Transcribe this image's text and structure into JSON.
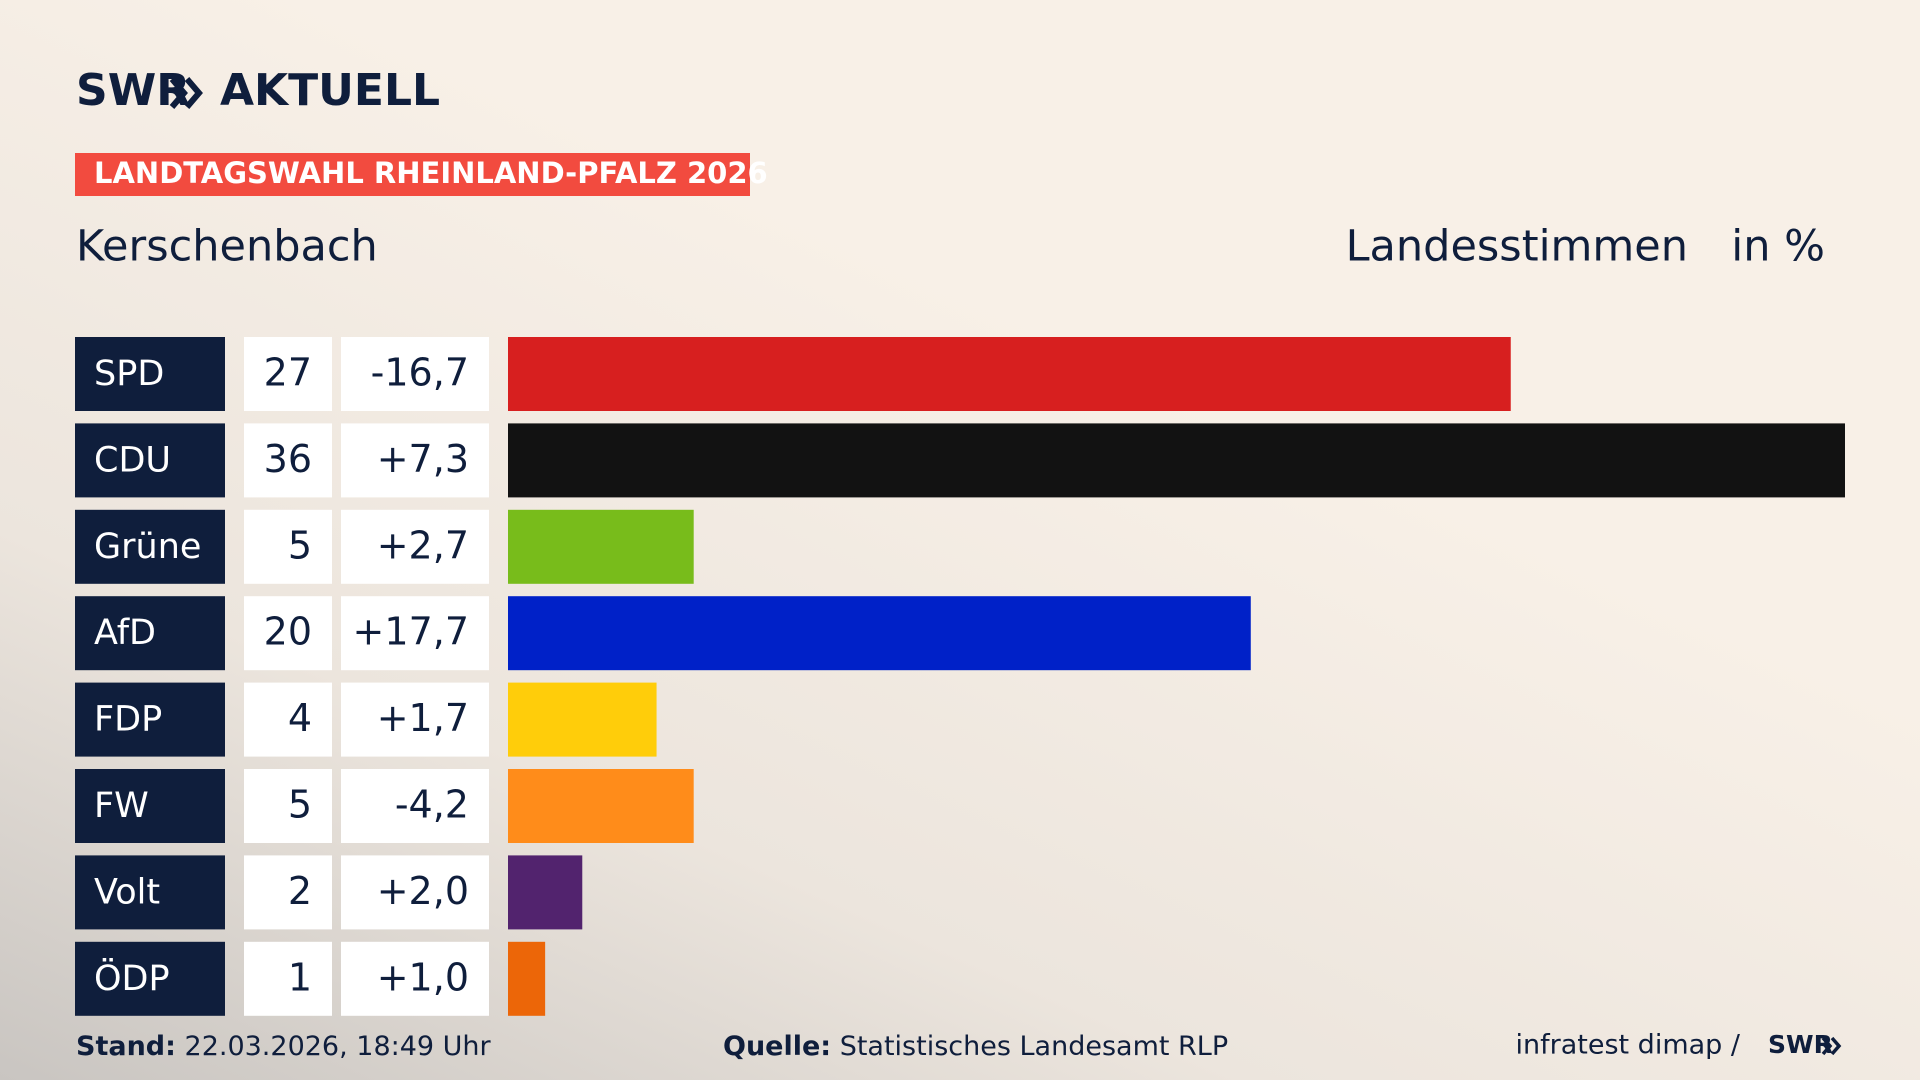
{
  "header": {
    "logo": "SWR",
    "logo_suffix": "AKTUELL",
    "badge": "LANDTAGSWAHL RHEINLAND-PFALZ 2026"
  },
  "chart_data": {
    "type": "bar",
    "orientation": "horizontal",
    "title": "Kerschenbach",
    "subtitle": "Landesstimmen",
    "unit_label": "in %",
    "categories": [
      "SPD",
      "CDU",
      "Grüne",
      "AfD",
      "FDP",
      "FW",
      "Volt",
      "ÖDP"
    ],
    "values": [
      27,
      36,
      5,
      20,
      4,
      5,
      2,
      1
    ],
    "colors": [
      "#d71f1f",
      "#121212",
      "#78bc1b",
      "#0021c8",
      "#ffcd0a",
      "#ff8c1a",
      "#52236e",
      "#ec6608"
    ],
    "changes": {
      "values": [
        -16.7,
        7.3,
        2.7,
        17.7,
        1.7,
        -4.2,
        2.0,
        1.0
      ],
      "value_labels": [
        "-16,7",
        "+7,3",
        "+2,7",
        "+17,7",
        "+1,7",
        "-4,2",
        "+2,0",
        "+1,0"
      ]
    }
  },
  "footer": {
    "stand_label": "Stand:",
    "stand": "22.03.2026, 18:49 Uhr",
    "source_label": "Quelle:",
    "source": "Statistisches Landesamt RLP",
    "credit": "infratest dimap /",
    "credit_logo": "SWR"
  }
}
